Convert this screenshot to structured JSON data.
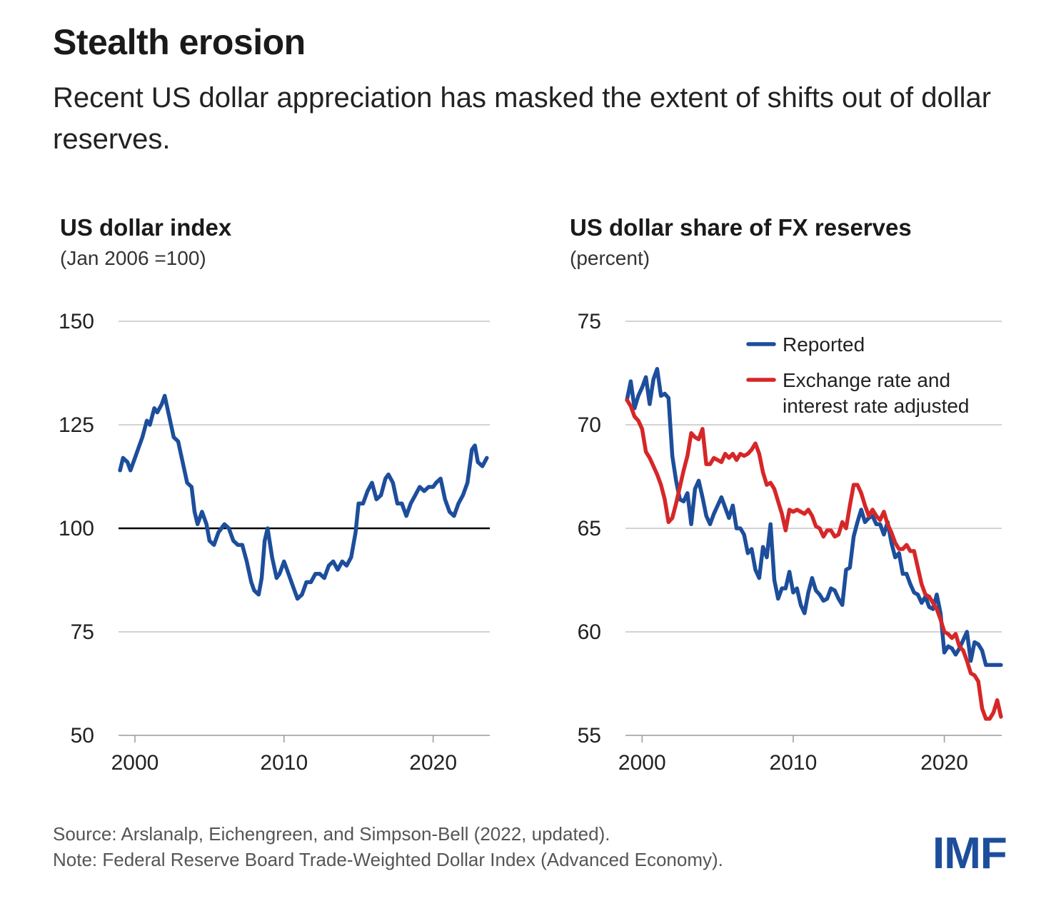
{
  "header": {
    "title": "Stealth erosion",
    "subtitle": "Recent US dollar appreciation has masked the extent of shifts out of dollar reserves."
  },
  "footer": {
    "source": "Source: Arslanalp, Eichengreen, and Simpson-Bell (2022, updated).",
    "note": "Note: Federal Reserve Board Trade-Weighted Dollar Index (Advanced Economy)."
  },
  "logo": "IMF",
  "colors": {
    "blue": "#1d4e9b",
    "red": "#d62728",
    "grid": "#d3d3d3",
    "baseline": "#000000"
  },
  "chart_data": [
    {
      "type": "line",
      "title": "US dollar index",
      "subtitle": "(Jan 2006 =100)",
      "xlim": [
        1998.9,
        2023.8
      ],
      "ylim": [
        50,
        150
      ],
      "yticks": [
        50,
        75,
        100,
        125,
        150
      ],
      "xticks": [
        2000,
        2010,
        2020
      ],
      "reference_line": 100,
      "series": [
        {
          "color": "#1d4e9b",
          "x": [
            1999.0,
            1999.2,
            1999.5,
            1999.7,
            2000.0,
            2000.3,
            2000.5,
            2000.8,
            2001.0,
            2001.3,
            2001.5,
            2001.8,
            2002.0,
            2002.3,
            2002.6,
            2002.9,
            2003.2,
            2003.5,
            2003.8,
            2004.0,
            2004.2,
            2004.5,
            2004.8,
            2005.0,
            2005.3,
            2005.6,
            2006.0,
            2006.3,
            2006.6,
            2006.9,
            2007.2,
            2007.5,
            2007.8,
            2008.0,
            2008.3,
            2008.5,
            2008.7,
            2008.9,
            2009.2,
            2009.5,
            2009.7,
            2010.0,
            2010.3,
            2010.6,
            2010.9,
            2011.2,
            2011.5,
            2011.8,
            2012.1,
            2012.4,
            2012.7,
            2013.0,
            2013.3,
            2013.6,
            2013.9,
            2014.2,
            2014.5,
            2014.8,
            2015.0,
            2015.3,
            2015.6,
            2015.9,
            2016.2,
            2016.5,
            2016.8,
            2017.0,
            2017.3,
            2017.6,
            2017.9,
            2018.2,
            2018.5,
            2018.8,
            2019.1,
            2019.4,
            2019.7,
            2020.0,
            2020.2,
            2020.5,
            2020.8,
            2021.1,
            2021.4,
            2021.7,
            2022.0,
            2022.3,
            2022.6,
            2022.8,
            2023.0,
            2023.3,
            2023.6
          ],
          "y": [
            114,
            117,
            116,
            114,
            117,
            120,
            122,
            126,
            125,
            129,
            128,
            130,
            132,
            127,
            122,
            121,
            116,
            111,
            110,
            104,
            101,
            104,
            101,
            97,
            96,
            99,
            101,
            100,
            97,
            96,
            96,
            92,
            87,
            85,
            84,
            88,
            97,
            100,
            93,
            88,
            89,
            92,
            89,
            86,
            83,
            84,
            87,
            87,
            89,
            89,
            88,
            91,
            92,
            90,
            92,
            91,
            93,
            99,
            106,
            106,
            109,
            111,
            107,
            108,
            112,
            113,
            111,
            106,
            106,
            103,
            106,
            108,
            110,
            109,
            110,
            110,
            111,
            112,
            107,
            104,
            103,
            106,
            108,
            111,
            119,
            120,
            116,
            115,
            117
          ]
        }
      ]
    },
    {
      "type": "line",
      "title": "US dollar share of FX reserves",
      "subtitle": "(percent)",
      "xlim": [
        1998.9,
        2023.8
      ],
      "ylim": [
        55,
        75
      ],
      "yticks": [
        55,
        60,
        65,
        70,
        75
      ],
      "xticks": [
        2000,
        2010,
        2020
      ],
      "legend_position": "top-right",
      "series": [
        {
          "name": "Reported",
          "color": "#1d4e9b",
          "x": [
            1999.0,
            1999.25,
            1999.5,
            1999.75,
            2000.0,
            2000.25,
            2000.5,
            2000.75,
            2001.0,
            2001.25,
            2001.5,
            2001.75,
            2002.0,
            2002.25,
            2002.5,
            2002.75,
            2003.0,
            2003.25,
            2003.5,
            2003.75,
            2004.0,
            2004.25,
            2004.5,
            2004.75,
            2005.0,
            2005.25,
            2005.5,
            2005.75,
            2006.0,
            2006.25,
            2006.5,
            2006.75,
            2007.0,
            2007.25,
            2007.5,
            2007.75,
            2008.0,
            2008.25,
            2008.5,
            2008.75,
            2009.0,
            2009.25,
            2009.5,
            2009.75,
            2010.0,
            2010.25,
            2010.5,
            2010.75,
            2011.0,
            2011.25,
            2011.5,
            2011.75,
            2012.0,
            2012.25,
            2012.5,
            2012.75,
            2013.0,
            2013.25,
            2013.5,
            2013.75,
            2014.0,
            2014.25,
            2014.5,
            2014.75,
            2015.0,
            2015.25,
            2015.5,
            2015.75,
            2016.0,
            2016.25,
            2016.5,
            2016.75,
            2017.0,
            2017.25,
            2017.5,
            2017.75,
            2018.0,
            2018.25,
            2018.5,
            2018.75,
            2019.0,
            2019.25,
            2019.5,
            2019.75,
            2020.0,
            2020.25,
            2020.5,
            2020.75,
            2021.0,
            2021.25,
            2021.5,
            2021.75,
            2022.0,
            2022.25,
            2022.5,
            2022.75,
            2023.0,
            2023.25,
            2023.5,
            2023.75
          ],
          "y": [
            71.2,
            72.1,
            70.8,
            71.4,
            71.8,
            72.3,
            71.0,
            72.2,
            72.7,
            71.4,
            71.5,
            71.3,
            68.5,
            67.3,
            66.4,
            66.3,
            66.7,
            65.2,
            66.9,
            67.3,
            66.5,
            65.6,
            65.2,
            65.7,
            66.1,
            66.5,
            66.0,
            65.5,
            66.1,
            65.0,
            65.0,
            64.7,
            63.8,
            64.0,
            63.0,
            62.6,
            64.1,
            63.6,
            65.2,
            62.5,
            61.6,
            62.1,
            62.1,
            62.9,
            61.9,
            62.1,
            61.3,
            60.9,
            61.9,
            62.6,
            62.0,
            61.8,
            61.5,
            61.6,
            62.1,
            62.0,
            61.6,
            61.3,
            63.0,
            63.1,
            64.6,
            65.3,
            65.9,
            65.3,
            65.5,
            65.6,
            65.2,
            65.2,
            64.7,
            65.3,
            64.3,
            63.6,
            63.8,
            62.8,
            62.8,
            62.3,
            61.9,
            61.8,
            61.4,
            61.7,
            61.2,
            61.1,
            61.8,
            60.9,
            59.0,
            59.3,
            59.2,
            58.9,
            59.2,
            59.6,
            60.0,
            58.6,
            59.5,
            59.4,
            59.1,
            58.4,
            58.4,
            58.4,
            58.4,
            58.4
          ]
        },
        {
          "name": "Exchange rate and interest rate adjusted",
          "color": "#d62728",
          "x": [
            1999.0,
            1999.25,
            1999.5,
            1999.75,
            2000.0,
            2000.25,
            2000.5,
            2000.75,
            2001.0,
            2001.25,
            2001.5,
            2001.75,
            2002.0,
            2002.25,
            2002.5,
            2002.75,
            2003.0,
            2003.25,
            2003.5,
            2003.75,
            2004.0,
            2004.25,
            2004.5,
            2004.75,
            2005.0,
            2005.25,
            2005.5,
            2005.75,
            2006.0,
            2006.25,
            2006.5,
            2006.75,
            2007.0,
            2007.25,
            2007.5,
            2007.75,
            2008.0,
            2008.25,
            2008.5,
            2008.75,
            2009.0,
            2009.25,
            2009.5,
            2009.75,
            2010.0,
            2010.25,
            2010.5,
            2010.75,
            2011.0,
            2011.25,
            2011.5,
            2011.75,
            2012.0,
            2012.25,
            2012.5,
            2012.75,
            2013.0,
            2013.25,
            2013.5,
            2013.75,
            2014.0,
            2014.25,
            2014.5,
            2014.75,
            2015.0,
            2015.25,
            2015.5,
            2015.75,
            2016.0,
            2016.25,
            2016.5,
            2016.75,
            2017.0,
            2017.25,
            2017.5,
            2017.75,
            2018.0,
            2018.25,
            2018.5,
            2018.75,
            2019.0,
            2019.25,
            2019.5,
            2019.75,
            2020.0,
            2020.25,
            2020.5,
            2020.75,
            2021.0,
            2021.25,
            2021.5,
            2021.75,
            2022.0,
            2022.25,
            2022.5,
            2022.75,
            2023.0,
            2023.25,
            2023.5,
            2023.75
          ],
          "y": [
            71.2,
            70.9,
            70.4,
            70.2,
            69.8,
            68.7,
            68.4,
            68.0,
            67.6,
            67.1,
            66.4,
            65.3,
            65.5,
            66.2,
            67.0,
            67.8,
            68.5,
            69.6,
            69.4,
            69.3,
            69.8,
            68.1,
            68.1,
            68.4,
            68.3,
            68.2,
            68.6,
            68.4,
            68.6,
            68.3,
            68.6,
            68.5,
            68.6,
            68.8,
            69.1,
            68.6,
            67.7,
            67.1,
            67.2,
            66.9,
            66.3,
            65.7,
            64.9,
            65.9,
            65.8,
            65.9,
            65.8,
            65.7,
            65.9,
            65.6,
            65.1,
            65.0,
            64.6,
            64.9,
            64.9,
            64.6,
            64.7,
            65.3,
            65.0,
            66.1,
            67.1,
            67.1,
            66.7,
            66.1,
            65.6,
            65.9,
            65.6,
            65.4,
            65.8,
            65.2,
            64.8,
            64.3,
            64.0,
            64.0,
            64.2,
            63.9,
            63.9,
            63.1,
            62.3,
            61.8,
            61.7,
            61.4,
            61.1,
            60.6,
            60.0,
            59.9,
            59.7,
            59.9,
            59.3,
            59.1,
            58.6,
            58.0,
            57.9,
            57.6,
            56.3,
            55.8,
            55.8,
            56.1,
            56.7,
            55.9
          ]
        }
      ]
    }
  ]
}
